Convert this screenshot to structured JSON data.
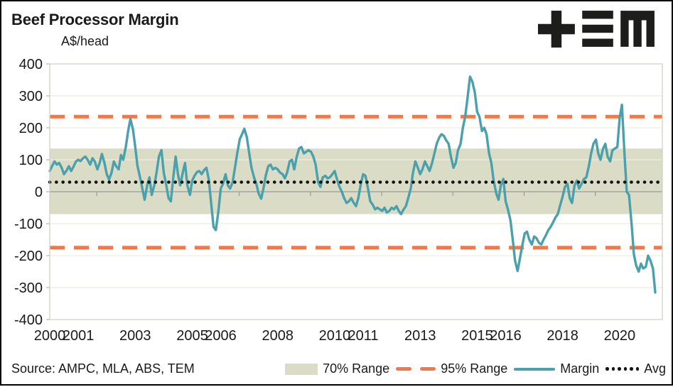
{
  "title": "Beef Processor Margin",
  "unit_label": "A$/head",
  "source": "Source: AMPC, MLA, ABS, TEM",
  "logo_name": "TEM",
  "colors": {
    "band": "#dbdcc6",
    "orange": "#f0794c",
    "teal": "#4ba1ab",
    "ink": "#141414",
    "gridline": "#efecdf",
    "zero_axis": "#a3a3a3",
    "plot_border": "#cfcfc5"
  },
  "legend": [
    {
      "label": "70% Range",
      "type": "band"
    },
    {
      "label": "95% Range",
      "type": "dashed"
    },
    {
      "label": "Margin",
      "type": "line"
    },
    {
      "label": "Avg",
      "type": "dotted"
    }
  ],
  "chart_data": {
    "type": "line",
    "title": "Beef Processor Margin",
    "ylabel": "A$/head",
    "ylim": [
      -400,
      400
    ],
    "ytick_interval": 100,
    "yticks": [
      400,
      300,
      200,
      100,
      0,
      -100,
      -200,
      -300,
      -400
    ],
    "xlim": [
      2000,
      2021.5
    ],
    "xticks": [
      2000,
      2001,
      2003,
      2005,
      2006,
      2008,
      2010,
      2011,
      2013,
      2015,
      2016,
      2018,
      2020
    ],
    "zero_axis_ticks": [
      2001.65,
      2004.15,
      2006.65,
      2009.15,
      2011.65,
      2014.15,
      2016.65,
      2019.15
    ],
    "grid": "horizontal",
    "legend_position": "bottom-right",
    "avg": 30,
    "range95": [
      -175,
      235
    ],
    "range70": [
      -70,
      135
    ],
    "series": [
      {
        "name": "Margin",
        "points": [
          [
            2000.0,
            65
          ],
          [
            2000.08,
            80
          ],
          [
            2000.17,
            95
          ],
          [
            2000.25,
            85
          ],
          [
            2000.33,
            90
          ],
          [
            2000.42,
            75
          ],
          [
            2000.5,
            55
          ],
          [
            2000.58,
            65
          ],
          [
            2000.67,
            80
          ],
          [
            2000.75,
            65
          ],
          [
            2000.83,
            78
          ],
          [
            2000.92,
            95
          ],
          [
            2001.0,
            100
          ],
          [
            2001.08,
            96
          ],
          [
            2001.17,
            105
          ],
          [
            2001.25,
            110
          ],
          [
            2001.33,
            100
          ],
          [
            2001.42,
            85
          ],
          [
            2001.5,
            105
          ],
          [
            2001.58,
            95
          ],
          [
            2001.67,
            70
          ],
          [
            2001.75,
            90
          ],
          [
            2001.83,
            118
          ],
          [
            2001.92,
            90
          ],
          [
            2002.0,
            55
          ],
          [
            2002.08,
            38
          ],
          [
            2002.17,
            60
          ],
          [
            2002.25,
            95
          ],
          [
            2002.33,
            80
          ],
          [
            2002.42,
            70
          ],
          [
            2002.5,
            115
          ],
          [
            2002.58,
            100
          ],
          [
            2002.67,
            140
          ],
          [
            2002.75,
            190
          ],
          [
            2002.83,
            228
          ],
          [
            2002.92,
            195
          ],
          [
            2003.0,
            140
          ],
          [
            2003.08,
            80
          ],
          [
            2003.17,
            45
          ],
          [
            2003.25,
            10
          ],
          [
            2003.33,
            -25
          ],
          [
            2003.42,
            20
          ],
          [
            2003.5,
            45
          ],
          [
            2003.58,
            -10
          ],
          [
            2003.67,
            20
          ],
          [
            2003.75,
            60
          ],
          [
            2003.83,
            110
          ],
          [
            2003.92,
            130
          ],
          [
            2004.0,
            60
          ],
          [
            2004.08,
            25
          ],
          [
            2004.17,
            -20
          ],
          [
            2004.25,
            -30
          ],
          [
            2004.33,
            40
          ],
          [
            2004.42,
            110
          ],
          [
            2004.5,
            55
          ],
          [
            2004.58,
            20
          ],
          [
            2004.67,
            60
          ],
          [
            2004.75,
            90
          ],
          [
            2004.83,
            20
          ],
          [
            2004.92,
            -10
          ],
          [
            2005.0,
            35
          ],
          [
            2005.08,
            50
          ],
          [
            2005.17,
            62
          ],
          [
            2005.25,
            65
          ],
          [
            2005.33,
            55
          ],
          [
            2005.42,
            68
          ],
          [
            2005.5,
            75
          ],
          [
            2005.58,
            40
          ],
          [
            2005.67,
            -40
          ],
          [
            2005.75,
            -110
          ],
          [
            2005.83,
            -120
          ],
          [
            2005.92,
            -60
          ],
          [
            2006.0,
            10
          ],
          [
            2006.08,
            25
          ],
          [
            2006.17,
            55
          ],
          [
            2006.25,
            20
          ],
          [
            2006.33,
            10
          ],
          [
            2006.42,
            30
          ],
          [
            2006.5,
            75
          ],
          [
            2006.58,
            120
          ],
          [
            2006.67,
            165
          ],
          [
            2006.75,
            180
          ],
          [
            2006.83,
            197
          ],
          [
            2006.92,
            170
          ],
          [
            2007.0,
            120
          ],
          [
            2007.08,
            75
          ],
          [
            2007.17,
            45
          ],
          [
            2007.25,
            25
          ],
          [
            2007.33,
            -5
          ],
          [
            2007.42,
            -22
          ],
          [
            2007.5,
            10
          ],
          [
            2007.58,
            50
          ],
          [
            2007.67,
            80
          ],
          [
            2007.75,
            85
          ],
          [
            2007.83,
            70
          ],
          [
            2007.92,
            75
          ],
          [
            2008.0,
            70
          ],
          [
            2008.08,
            60
          ],
          [
            2008.17,
            55
          ],
          [
            2008.25,
            42
          ],
          [
            2008.33,
            60
          ],
          [
            2008.42,
            95
          ],
          [
            2008.5,
            100
          ],
          [
            2008.58,
            70
          ],
          [
            2008.67,
            110
          ],
          [
            2008.75,
            135
          ],
          [
            2008.83,
            140
          ],
          [
            2008.92,
            120
          ],
          [
            2009.0,
            125
          ],
          [
            2009.08,
            130
          ],
          [
            2009.17,
            125
          ],
          [
            2009.25,
            110
          ],
          [
            2009.33,
            85
          ],
          [
            2009.42,
            30
          ],
          [
            2009.5,
            15
          ],
          [
            2009.58,
            45
          ],
          [
            2009.67,
            50
          ],
          [
            2009.75,
            42
          ],
          [
            2009.83,
            45
          ],
          [
            2009.92,
            55
          ],
          [
            2010.0,
            65
          ],
          [
            2010.08,
            40
          ],
          [
            2010.17,
            15
          ],
          [
            2010.25,
            0
          ],
          [
            2010.33,
            -20
          ],
          [
            2010.42,
            -35
          ],
          [
            2010.5,
            -30
          ],
          [
            2010.58,
            -20
          ],
          [
            2010.67,
            -35
          ],
          [
            2010.75,
            -45
          ],
          [
            2010.83,
            -20
          ],
          [
            2010.92,
            25
          ],
          [
            2011.0,
            55
          ],
          [
            2011.08,
            50
          ],
          [
            2011.17,
            10
          ],
          [
            2011.25,
            -30
          ],
          [
            2011.33,
            -40
          ],
          [
            2011.42,
            -55
          ],
          [
            2011.5,
            -50
          ],
          [
            2011.58,
            -55
          ],
          [
            2011.67,
            -60
          ],
          [
            2011.75,
            -50
          ],
          [
            2011.83,
            -65
          ],
          [
            2011.92,
            -60
          ],
          [
            2012.0,
            -50
          ],
          [
            2012.08,
            -55
          ],
          [
            2012.17,
            -45
          ],
          [
            2012.25,
            -60
          ],
          [
            2012.33,
            -70
          ],
          [
            2012.42,
            -55
          ],
          [
            2012.5,
            -45
          ],
          [
            2012.58,
            -20
          ],
          [
            2012.67,
            10
          ],
          [
            2012.75,
            60
          ],
          [
            2012.83,
            95
          ],
          [
            2012.92,
            75
          ],
          [
            2013.0,
            55
          ],
          [
            2013.08,
            70
          ],
          [
            2013.17,
            95
          ],
          [
            2013.25,
            80
          ],
          [
            2013.33,
            65
          ],
          [
            2013.42,
            90
          ],
          [
            2013.5,
            120
          ],
          [
            2013.58,
            150
          ],
          [
            2013.67,
            170
          ],
          [
            2013.75,
            180
          ],
          [
            2013.83,
            175
          ],
          [
            2013.92,
            160
          ],
          [
            2014.0,
            150
          ],
          [
            2014.08,
            110
          ],
          [
            2014.17,
            75
          ],
          [
            2014.25,
            90
          ],
          [
            2014.33,
            130
          ],
          [
            2014.42,
            150
          ],
          [
            2014.5,
            200
          ],
          [
            2014.58,
            235
          ],
          [
            2014.67,
            300
          ],
          [
            2014.75,
            360
          ],
          [
            2014.83,
            345
          ],
          [
            2014.92,
            310
          ],
          [
            2015.0,
            250
          ],
          [
            2015.08,
            235
          ],
          [
            2015.17,
            190
          ],
          [
            2015.25,
            200
          ],
          [
            2015.33,
            180
          ],
          [
            2015.42,
            120
          ],
          [
            2015.5,
            90
          ],
          [
            2015.58,
            35
          ],
          [
            2015.67,
            -5
          ],
          [
            2015.75,
            -25
          ],
          [
            2015.83,
            20
          ],
          [
            2015.92,
            40
          ],
          [
            2016.0,
            -30
          ],
          [
            2016.08,
            -55
          ],
          [
            2016.17,
            -90
          ],
          [
            2016.25,
            -150
          ],
          [
            2016.33,
            -215
          ],
          [
            2016.42,
            -248
          ],
          [
            2016.5,
            -210
          ],
          [
            2016.58,
            -170
          ],
          [
            2016.67,
            -130
          ],
          [
            2016.75,
            -125
          ],
          [
            2016.83,
            -150
          ],
          [
            2016.92,
            -165
          ],
          [
            2017.0,
            -140
          ],
          [
            2017.08,
            -145
          ],
          [
            2017.17,
            -160
          ],
          [
            2017.25,
            -165
          ],
          [
            2017.33,
            -150
          ],
          [
            2017.42,
            -135
          ],
          [
            2017.5,
            -120
          ],
          [
            2017.58,
            -110
          ],
          [
            2017.67,
            -95
          ],
          [
            2017.75,
            -80
          ],
          [
            2017.83,
            -70
          ],
          [
            2017.92,
            -40
          ],
          [
            2018.0,
            -15
          ],
          [
            2018.08,
            15
          ],
          [
            2018.17,
            25
          ],
          [
            2018.25,
            -20
          ],
          [
            2018.33,
            -35
          ],
          [
            2018.42,
            20
          ],
          [
            2018.5,
            35
          ],
          [
            2018.58,
            10
          ],
          [
            2018.67,
            25
          ],
          [
            2018.75,
            40
          ],
          [
            2018.83,
            45
          ],
          [
            2018.92,
            80
          ],
          [
            2019.0,
            120
          ],
          [
            2019.08,
            150
          ],
          [
            2019.17,
            163
          ],
          [
            2019.25,
            120
          ],
          [
            2019.33,
            100
          ],
          [
            2019.42,
            135
          ],
          [
            2019.5,
            150
          ],
          [
            2019.58,
            110
          ],
          [
            2019.67,
            95
          ],
          [
            2019.75,
            130
          ],
          [
            2019.83,
            135
          ],
          [
            2019.92,
            140
          ],
          [
            2020.0,
            230
          ],
          [
            2020.08,
            272
          ],
          [
            2020.17,
            120
          ],
          [
            2020.25,
            0
          ],
          [
            2020.33,
            -10
          ],
          [
            2020.42,
            -100
          ],
          [
            2020.5,
            -195
          ],
          [
            2020.58,
            -230
          ],
          [
            2020.67,
            -250
          ],
          [
            2020.75,
            -225
          ],
          [
            2020.83,
            -240
          ],
          [
            2020.92,
            -235
          ],
          [
            2021.0,
            -200
          ],
          [
            2021.08,
            -215
          ],
          [
            2021.17,
            -240
          ],
          [
            2021.25,
            -315
          ]
        ]
      }
    ]
  }
}
